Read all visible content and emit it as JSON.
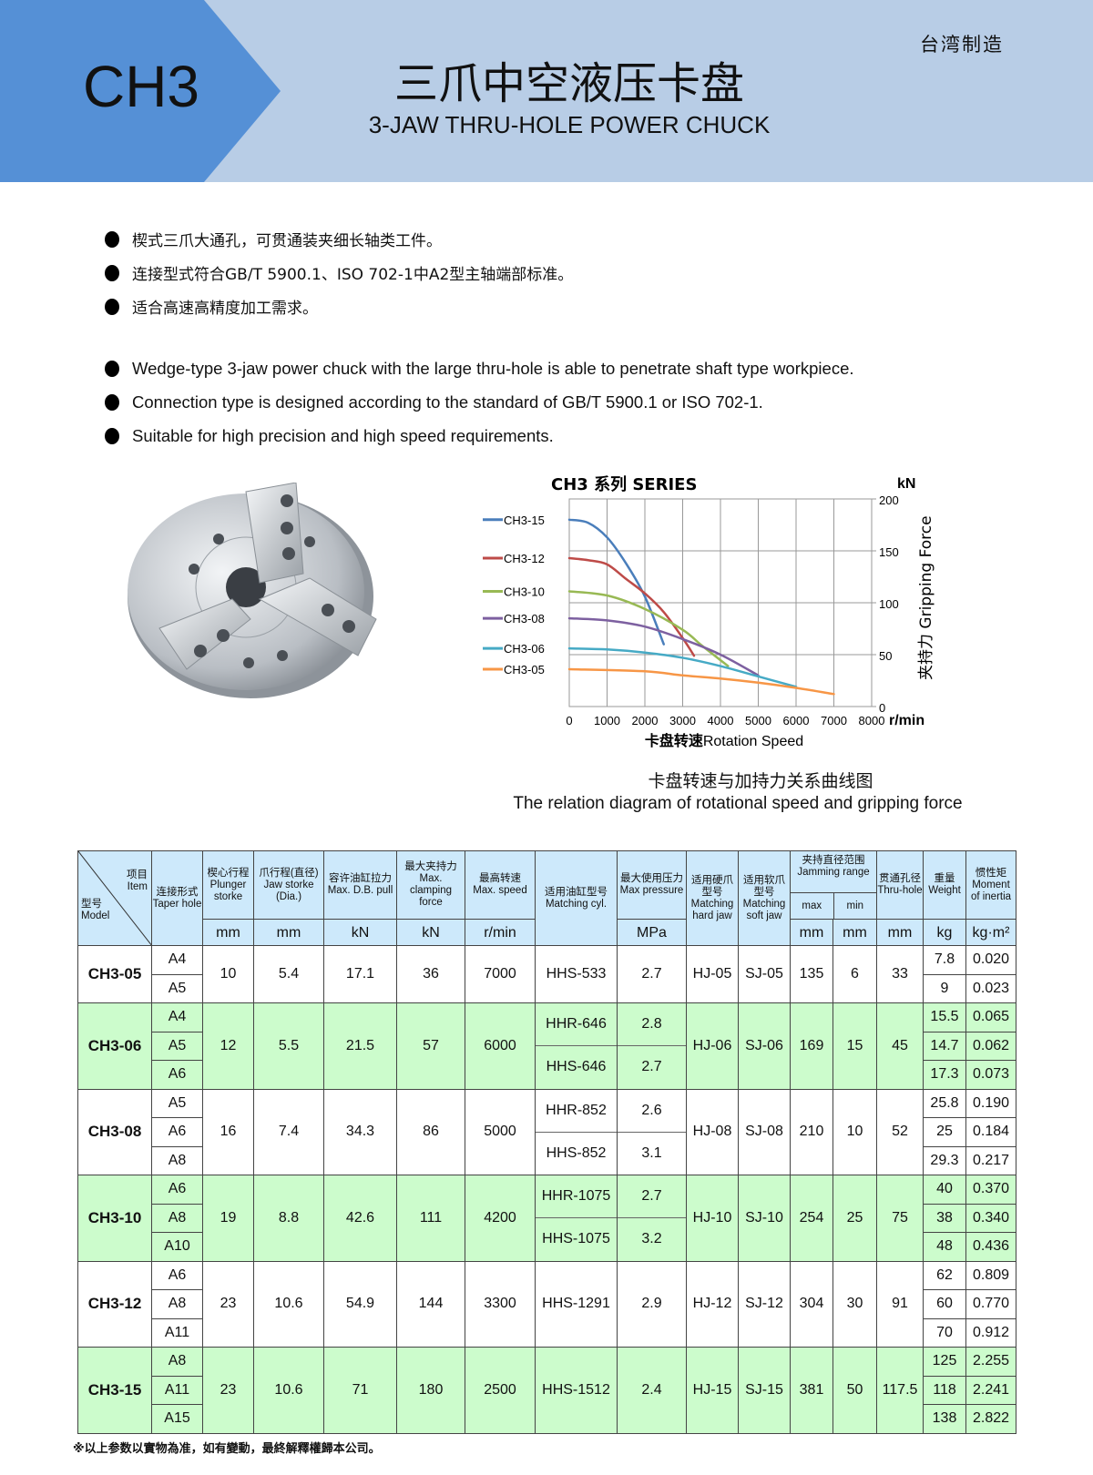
{
  "header": {
    "model_code": "CH3",
    "title_cn": "三爪中空液压卡盘",
    "title_en": "3-JAW THRU-HOLE POWER CHUCK",
    "origin": "台湾制造",
    "colors": {
      "banner_light": "#b8cde6",
      "banner_dark": "#5590d6"
    }
  },
  "features_cn": [
    "楔式三爪大通孔，可贯通装夹细长轴类工件。",
    "连接型式符合GB/T 5900.1、ISO 702-1中A2型主轴端部标准。",
    "适合高速高精度加工需求。"
  ],
  "features_en": [
    "Wedge-type 3-jaw power chuck with the large thru-hole is able to penetrate shaft type workpiece.",
    "Connection type is designed according to the standard of GB/T 5900.1 or ISO 702-1.",
    "Suitable for high precision and high speed requirements."
  ],
  "chart_data": {
    "type": "line",
    "title": "CH3  系列 SERIES",
    "xlabel_cn": "卡盘转速",
    "xlabel_en": "Rotation Speed",
    "x_unit": "r/min",
    "ylabel": "夹持力 Gripping Force",
    "y_unit": "kN",
    "xlim": [
      0,
      8000
    ],
    "ylim": [
      0,
      200
    ],
    "x_ticks": [
      "0",
      "1000",
      "2000",
      "3000",
      "4000",
      "5000",
      "6000",
      "7000",
      "8000"
    ],
    "y_ticks": [
      "0",
      "50",
      "100",
      "150",
      "200"
    ],
    "y_axis_side": "right",
    "grid": true,
    "legend_placement": "left",
    "series": [
      {
        "name": "CH3-15",
        "color": "#4a7ebb",
        "x": [
          0,
          500,
          1000,
          1500,
          2000,
          2500
        ],
        "y": [
          180,
          177,
          163,
          138,
          106,
          60
        ]
      },
      {
        "name": "CH3-12",
        "color": "#be4b48",
        "x": [
          0,
          500,
          1000,
          1500,
          2000,
          2500,
          3000,
          3300
        ],
        "y": [
          143,
          141,
          137,
          123,
          109,
          91,
          66,
          49
        ]
      },
      {
        "name": "CH3-10",
        "color": "#98b954",
        "x": [
          0,
          1000,
          2000,
          3000,
          3500,
          4200
        ],
        "y": [
          111,
          107,
          94,
          74,
          59,
          39
        ]
      },
      {
        "name": "CH3-08",
        "color": "#7d60a0",
        "x": [
          0,
          1000,
          2000,
          3000,
          4000,
          5000
        ],
        "y": [
          85,
          83,
          77,
          65,
          50,
          30
        ]
      },
      {
        "name": "CH3-06",
        "color": "#46aac5",
        "x": [
          0,
          1000,
          2000,
          3000,
          4000,
          5000,
          6000
        ],
        "y": [
          56,
          55,
          52,
          47,
          39,
          29,
          19
        ]
      },
      {
        "name": "CH3-05",
        "color": "#f79646",
        "x": [
          0,
          2000,
          3000,
          4000,
          5000,
          6000,
          7000
        ],
        "y": [
          36,
          34,
          30,
          27,
          23,
          18,
          12
        ]
      }
    ]
  },
  "caption": {
    "cn": "卡盘转速与加持力关系曲线图",
    "en": "The relation diagram of rotational speed and gripping force"
  },
  "table": {
    "corner": {
      "item_cn": "项目",
      "item_en": "Item",
      "model_cn": "型号",
      "model_en": "Model"
    },
    "headers": [
      {
        "cn": "连接形式",
        "en": "Taper hole",
        "unit": ""
      },
      {
        "cn": "楔心行程",
        "en": "Plunger storke",
        "unit": "mm"
      },
      {
        "cn": "爪行程(直径)",
        "en": "Jaw storke (Dia.)",
        "unit": "mm"
      },
      {
        "cn": "容许油缸拉力",
        "en": "Max. D.B. pull",
        "unit": "kN"
      },
      {
        "cn": "最大夹持力",
        "en": "Max. clamping force",
        "unit": "kN"
      },
      {
        "cn": "最高转速",
        "en": "Max. speed",
        "unit": "r/min"
      },
      {
        "cn": "适用油缸型号",
        "en": "Matching cyl.",
        "unit": ""
      },
      {
        "cn": "最大使用压力",
        "en": "Max pressure",
        "unit": "MPa"
      },
      {
        "cn": "适用硬爪型号",
        "en": "Matching hard jaw",
        "unit": ""
      },
      {
        "cn": "适用软爪型号",
        "en": "Matching soft jaw",
        "unit": ""
      },
      {
        "cn": "夹持直径范围",
        "en": "Jamming range",
        "sub": [
          "max",
          "min"
        ],
        "unit": [
          "mm",
          "mm"
        ]
      },
      {
        "cn": "贯通孔径",
        "en": "Thru-hole",
        "unit": "mm"
      },
      {
        "cn": "重量",
        "en": "Weight",
        "unit": "kg"
      },
      {
        "cn": "惯性矩",
        "en": "Moment of inertia",
        "unit": "kg·m²"
      }
    ],
    "rows": [
      {
        "model": "CH3-05",
        "taper": [
          "A4",
          "A5"
        ],
        "plunger": "10",
        "jaw": "5.4",
        "pull": "17.1",
        "clamp": "36",
        "speed": "7000",
        "cyl": [
          "HHS-533"
        ],
        "pressure": [
          "2.7"
        ],
        "hard": "HJ-05",
        "soft": "SJ-05",
        "max": "135",
        "min": "6",
        "thru": "33",
        "weight": [
          "7.8",
          "9"
        ],
        "inertia": [
          "0.020",
          "0.023"
        ]
      },
      {
        "model": "CH3-06",
        "taper": [
          "A4",
          "A5",
          "A6"
        ],
        "plunger": "12",
        "jaw": "5.5",
        "pull": "21.5",
        "clamp": "57",
        "speed": "6000",
        "cyl": [
          "HHR-646",
          "HHS-646"
        ],
        "pressure": [
          "2.8",
          "2.7"
        ],
        "hard": "HJ-06",
        "soft": "SJ-06",
        "max": "169",
        "min": "15",
        "thru": "45",
        "weight": [
          "15.5",
          "14.7",
          "17.3"
        ],
        "inertia": [
          "0.065",
          "0.062",
          "0.073"
        ]
      },
      {
        "model": "CH3-08",
        "taper": [
          "A5",
          "A6",
          "A8"
        ],
        "plunger": "16",
        "jaw": "7.4",
        "pull": "34.3",
        "clamp": "86",
        "speed": "5000",
        "cyl": [
          "HHR-852",
          "HHS-852"
        ],
        "pressure": [
          "2.6",
          "3.1"
        ],
        "hard": "HJ-08",
        "soft": "SJ-08",
        "max": "210",
        "min": "10",
        "thru": "52",
        "weight": [
          "25.8",
          "25",
          "29.3"
        ],
        "inertia": [
          "0.190",
          "0.184",
          "0.217"
        ]
      },
      {
        "model": "CH3-10",
        "taper": [
          "A6",
          "A8",
          "A10"
        ],
        "plunger": "19",
        "jaw": "8.8",
        "pull": "42.6",
        "clamp": "111",
        "speed": "4200",
        "cyl": [
          "HHR-1075",
          "HHS-1075"
        ],
        "pressure": [
          "2.7",
          "3.2"
        ],
        "hard": "HJ-10",
        "soft": "SJ-10",
        "max": "254",
        "min": "25",
        "thru": "75",
        "weight": [
          "40",
          "38",
          "48"
        ],
        "inertia": [
          "0.370",
          "0.340",
          "0.436"
        ]
      },
      {
        "model": "CH3-12",
        "taper": [
          "A6",
          "A8",
          "A11"
        ],
        "plunger": "23",
        "jaw": "10.6",
        "pull": "54.9",
        "clamp": "144",
        "speed": "3300",
        "cyl": [
          "HHS-1291"
        ],
        "pressure": [
          "2.9"
        ],
        "hard": "HJ-12",
        "soft": "SJ-12",
        "max": "304",
        "min": "30",
        "thru": "91",
        "weight": [
          "62",
          "60",
          "70"
        ],
        "inertia": [
          "0.809",
          "0.770",
          "0.912"
        ]
      },
      {
        "model": "CH3-15",
        "taper": [
          "A8",
          "A11",
          "A15"
        ],
        "plunger": "23",
        "jaw": "10.6",
        "pull": "71",
        "clamp": "180",
        "speed": "2500",
        "cyl": [
          "HHS-1512"
        ],
        "pressure": [
          "2.4"
        ],
        "hard": "HJ-15",
        "soft": "SJ-15",
        "max": "381",
        "min": "50",
        "thru": "117.5",
        "weight": [
          "125",
          "118",
          "138"
        ],
        "inertia": [
          "2.255",
          "2.241",
          "2.822"
        ]
      }
    ],
    "row_colors": {
      "white": "#ffffff",
      "green": "#ccfccc",
      "header": "#cde9fb"
    }
  },
  "footnote": "※以上参数以實物為准，如有變動，最終解釋權歸本公司。"
}
